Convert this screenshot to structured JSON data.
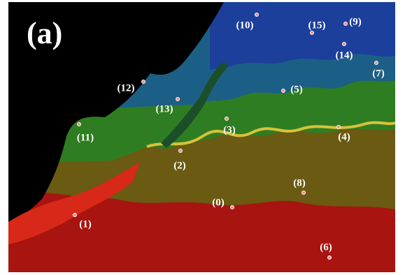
{
  "panel_label": "(a)",
  "stations": [
    "(0)",
    "(1)",
    "(2)",
    "(3)",
    "(4)",
    "(5)",
    "(6)",
    "(7)",
    "(8)",
    "(9)",
    "(10)",
    "(11)",
    "(12)",
    "(13)",
    "(14)",
    "(15)"
  ]
}
